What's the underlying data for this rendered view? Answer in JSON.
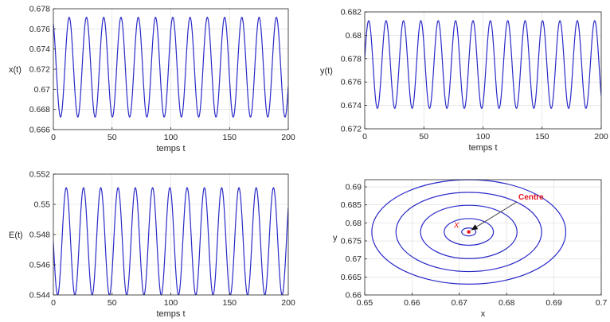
{
  "chart_data": [
    {
      "type": "line",
      "ylabel": "x(t)",
      "xlabel": "temps t",
      "xlim": [
        0,
        200
      ],
      "ylim": [
        0.666,
        0.678
      ],
      "xticks": [
        "0",
        "50",
        "100",
        "150",
        "200"
      ],
      "yticks": [
        "0.666",
        "0.668",
        "0.67",
        "0.672",
        "0.674",
        "0.676",
        "0.678"
      ],
      "grid": true,
      "series": [
        {
          "color": "#2a2ac8",
          "waveform": {
            "mean": 0.6722,
            "amplitude": 0.00495,
            "period": 14.7,
            "start_value": 0.6765,
            "start_phase": "decreasing"
          }
        }
      ]
    },
    {
      "type": "line",
      "ylabel": "y(t)",
      "xlabel": "temps t",
      "xlim": [
        0,
        200
      ],
      "ylim": [
        0.672,
        0.682
      ],
      "xticks": [
        "0",
        "50",
        "100",
        "150",
        "200"
      ],
      "yticks": [
        "0.672",
        "0.674",
        "0.676",
        "0.678",
        "0.68",
        "0.682"
      ],
      "grid": true,
      "series": [
        {
          "color": "#2a2ac8",
          "waveform": {
            "mean": 0.6775,
            "amplitude": 0.00375,
            "period": 14.7,
            "start_value": 0.678,
            "start_phase": "increasing"
          }
        }
      ]
    },
    {
      "type": "line",
      "ylabel": "E(t)",
      "xlabel": "temps t",
      "xlim": [
        0,
        200
      ],
      "ylim": [
        0.544,
        0.552
      ],
      "xticks": [
        "0",
        "50",
        "100",
        "150",
        "200"
      ],
      "yticks": [
        "0.544",
        "0.546",
        "0.548",
        "0.55",
        "0.552"
      ],
      "grid": true,
      "series": [
        {
          "color": "#2a2ac8",
          "waveform": {
            "mean": 0.54755,
            "amplitude": 0.00355,
            "period": 14.7,
            "start_value": 0.5475,
            "start_phase": "decreasing"
          }
        }
      ]
    },
    {
      "type": "line",
      "xlabel": "x",
      "ylabel": "y",
      "xlim": [
        0.65,
        0.7
      ],
      "ylim": [
        0.66,
        0.692
      ],
      "xticks": [
        "0.65",
        "0.66",
        "0.67",
        "0.68",
        "0.69",
        "0.7"
      ],
      "yticks": [
        "0.66",
        "0.665",
        "0.67",
        "0.675",
        "0.68",
        "0.685",
        "0.69"
      ],
      "grid": true,
      "orbits": [
        {
          "cx": 0.672,
          "cy": 0.6775,
          "rx": 0.0015,
          "ry": 0.0011
        },
        {
          "cx": 0.672,
          "cy": 0.6775,
          "rx": 0.0052,
          "ry": 0.0037
        },
        {
          "cx": 0.672,
          "cy": 0.6775,
          "rx": 0.0102,
          "ry": 0.0074
        },
        {
          "cx": 0.672,
          "cy": 0.6775,
          "rx": 0.0154,
          "ry": 0.011
        },
        {
          "cx": 0.672,
          "cy": 0.6775,
          "rx": 0.0205,
          "ry": 0.0145
        }
      ],
      "centre_point": {
        "x": 0.672,
        "y": 0.6775,
        "color": "#e8141e"
      },
      "annotations": [
        {
          "text": "Centre",
          "color": "#e8141e",
          "x": 0.6825,
          "y": 0.6865,
          "arrow_to": [
            0.6725,
            0.678
          ]
        },
        {
          "text": "X",
          "color": "#e8141e",
          "x": 0.6694,
          "y": 0.6786
        }
      ],
      "series_color": "#2a2ac8"
    }
  ]
}
